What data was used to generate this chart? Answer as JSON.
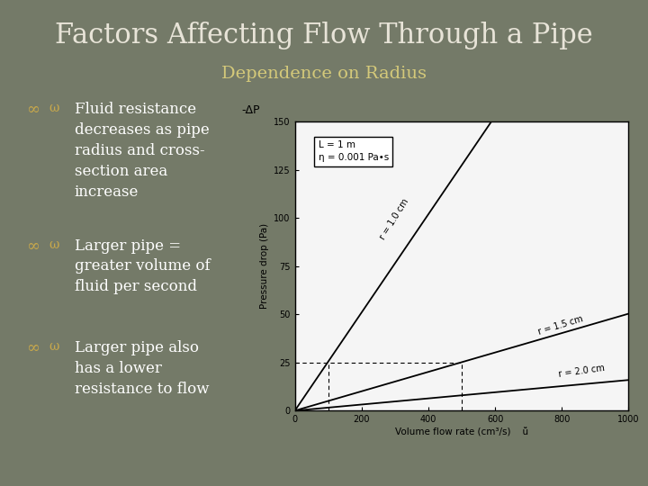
{
  "title": "Factors Affecting Flow Through a Pipe",
  "subtitle": "Dependence on Radius",
  "bg_color": "#747a68",
  "title_color": "#e8e4d8",
  "subtitle_color": "#d4c97a",
  "bullet_color": "#c8a84b",
  "text_color": "#ffffff",
  "bullets": [
    "Fluid resistance\ndecreases as pipe\nradius and cross-\nsection area\nincrease",
    "Larger pipe =\ngreater volume of\nfluid per second",
    "Larger pipe also\nhas a lower\nresistance to flow"
  ],
  "bullet_symbol": "∞ω",
  "graph": {
    "xlabel": "Volume flow rate (cm³/s)",
    "ylabel": "Pressure drop (Pa)",
    "ylabel_left": "-ΔP",
    "x_extra_label": "ṻ",
    "xlim": [
      0,
      1000
    ],
    "ylim": [
      0,
      150
    ],
    "xticks": [
      0,
      200,
      400,
      600,
      800,
      1000
    ],
    "yticks": [
      0,
      25,
      50,
      75,
      100,
      125,
      150
    ],
    "r1_label": "r = 1.0 cm",
    "r2_label": "r = 1.5 cm",
    "r3_label": "r = 2.0 cm",
    "legend_L": "L = 1 m",
    "legend_eta": "η = 0.001 Pa•s",
    "dashed_x": 500,
    "dashed_y": 25,
    "dashed_x2": 100,
    "bg_color": "#f5f5f5"
  }
}
